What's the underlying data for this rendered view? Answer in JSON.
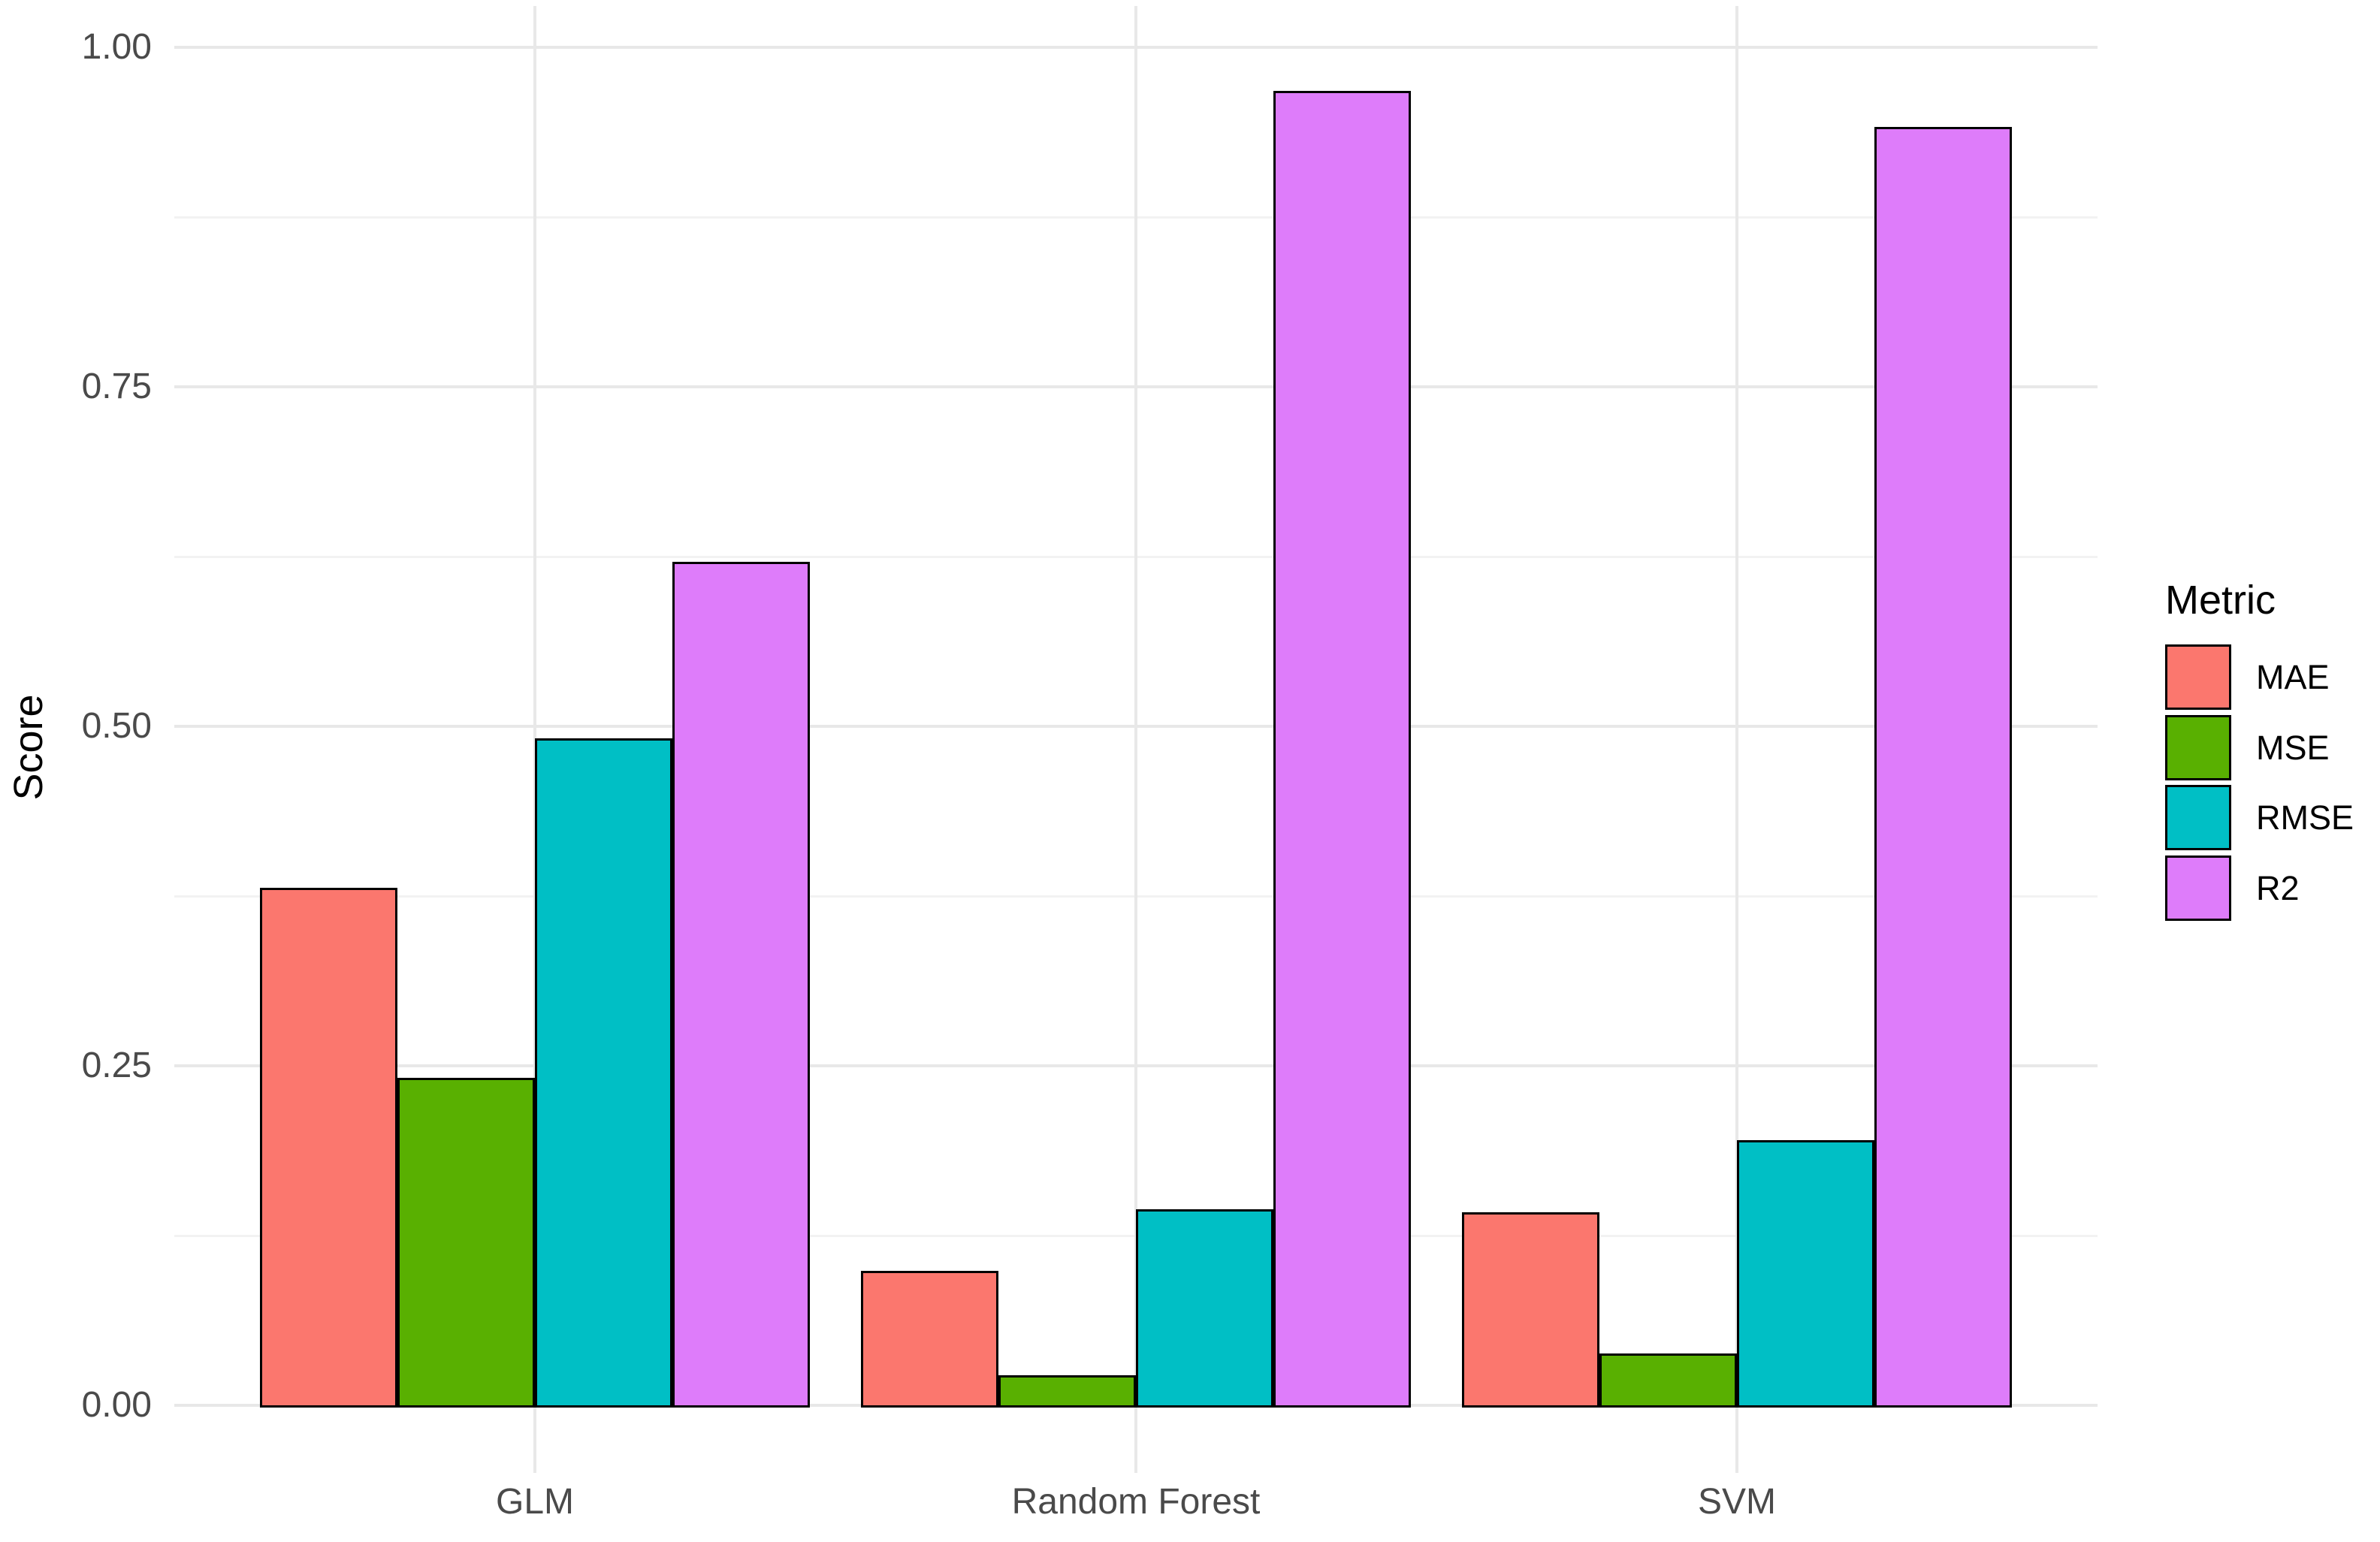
{
  "chart_data": {
    "type": "bar",
    "title": "",
    "categories": [
      "GLM",
      "Random Forest",
      "SVM"
    ],
    "series": [
      {
        "name": "MAE",
        "color": "#FB776E",
        "values": [
          0.38,
          0.098,
          0.141
        ]
      },
      {
        "name": "MSE",
        "color": "#59B001",
        "values": [
          0.24,
          0.021,
          0.037
        ]
      },
      {
        "name": "RMSE",
        "color": "#00BFC5",
        "values": [
          0.49,
          0.143,
          0.194
        ]
      },
      {
        "name": "R2",
        "color": "#DE7CFA",
        "values": [
          0.62,
          0.967,
          0.94
        ]
      }
    ],
    "xlabel": "",
    "ylabel": "Score",
    "legend_title": "Metric",
    "legend_position": "right",
    "legend_entries": [
      "MAE",
      "MSE",
      "RMSE",
      "R2"
    ],
    "ylim": [
      0,
      1.05
    ],
    "y_major_ticks": [
      {
        "value": 0.0,
        "label": "0.00"
      },
      {
        "value": 0.25,
        "label": "0.25"
      },
      {
        "value": 0.5,
        "label": "0.50"
      },
      {
        "value": 0.75,
        "label": "0.75"
      },
      {
        "value": 1.0,
        "label": "1.00"
      }
    ],
    "y_minor_ticks": [
      0.125,
      0.375,
      0.625,
      0.875
    ],
    "grid": "horizontal major+minor, vertical major at category centers",
    "colors": {
      "background": "#FFFFFF",
      "major_gridline": "#E8E8E8",
      "minor_gridline": "#F2F2F2",
      "bar_border": "#000000",
      "axis_tick_text": "#4A4A4A",
      "axis_title_text": "#000000",
      "legend_text": "#000000"
    }
  }
}
